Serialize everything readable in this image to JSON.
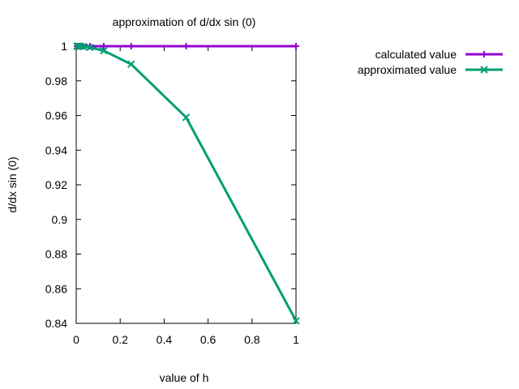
{
  "chart_data": {
    "type": "line",
    "title": "approximation of d/dx sin (0)",
    "xlabel": "value of h",
    "ylabel": "d/dx sin (0)",
    "xlim": [
      0,
      1
    ],
    "ylim": [
      0.84,
      1
    ],
    "x_ticks": [
      "0",
      "0.2",
      "0.4",
      "0.6",
      "0.8",
      "1"
    ],
    "y_ticks": [
      "0.84",
      "0.86",
      "0.88",
      "0.9",
      "0.92",
      "0.94",
      "0.96",
      "0.98",
      "1"
    ],
    "grid": false,
    "legend_position": "top-right outside",
    "series": [
      {
        "name": "calculated value",
        "color": "#9400d3",
        "marker": "plus",
        "x": [
          1,
          0.5,
          0.25,
          0.125,
          0.0625,
          0.03125,
          0.015625,
          0.0078125,
          0.00390625
        ],
        "y": [
          1,
          1,
          1,
          1,
          1,
          1,
          1,
          1,
          1
        ]
      },
      {
        "name": "approximated value",
        "color": "#009e73",
        "marker": "cross",
        "x": [
          1,
          0.5,
          0.25,
          0.125,
          0.0625,
          0.03125,
          0.015625,
          0.0078125,
          0.00390625
        ],
        "y": [
          0.8415,
          0.9589,
          0.9896,
          0.9974,
          0.9993,
          0.9998,
          1.0,
          1.0,
          1.0
        ]
      }
    ]
  }
}
